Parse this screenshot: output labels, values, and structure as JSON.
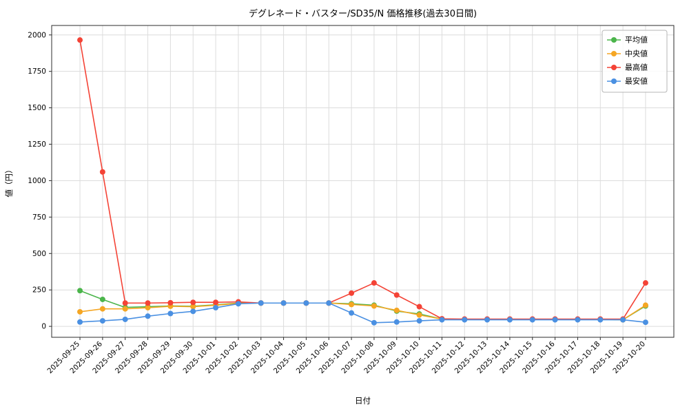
{
  "page": {
    "background": "#ffffff",
    "grid_color": "#dcdcdc",
    "frame_color": "#2b2b2b",
    "legend_border_color": "#b5b5b5"
  },
  "chart_data": {
    "type": "line",
    "title": "デグレネード・バスター/SD35/N 価格推移(過去30日間)",
    "xlabel": "日付",
    "ylabel": "値（円）",
    "grid": true,
    "legend_position": "upper right",
    "ylim": [
      -75,
      2065
    ],
    "yticks": [
      0,
      250,
      500,
      750,
      1000,
      1250,
      1500,
      1750,
      2000
    ],
    "x_margin": 1.25,
    "categories": [
      "2025-09-25",
      "2025-09-26",
      "2025-09-27",
      "2025-09-28",
      "2025-09-29",
      "2025-09-30",
      "2025-10-01",
      "2025-10-02",
      "2025-10-03",
      "2025-10-04",
      "2025-10-05",
      "2025-10-06",
      "2025-10-07",
      "2025-10-08",
      "2025-10-09",
      "2025-10-10",
      "2025-10-11",
      "2025-10-12",
      "2025-10-13",
      "2025-10-14",
      "2025-10-15",
      "2025-10-16",
      "2025-10-17",
      "2025-10-18",
      "2025-10-19",
      "2025-10-20"
    ],
    "series": [
      {
        "name": "平均値",
        "color": "#4bb54b",
        "values": [
          245,
          185,
          130,
          135,
          140,
          138,
          148,
          160,
          160,
          160,
          160,
          160,
          155,
          145,
          105,
          85,
          50,
          48,
          48,
          48,
          48,
          48,
          48,
          48,
          45,
          140
        ]
      },
      {
        "name": "中央値",
        "color": "#f5a623",
        "values": [
          100,
          120,
          120,
          128,
          138,
          135,
          145,
          158,
          160,
          160,
          160,
          160,
          150,
          140,
          110,
          78,
          50,
          48,
          48,
          48,
          48,
          48,
          48,
          48,
          45,
          145
        ]
      },
      {
        "name": "最高値",
        "color": "#f44336",
        "values": [
          1965,
          1060,
          160,
          160,
          162,
          165,
          165,
          168,
          160,
          160,
          160,
          160,
          228,
          298,
          215,
          135,
          52,
          50,
          50,
          50,
          50,
          50,
          50,
          50,
          50,
          298
        ]
      },
      {
        "name": "最安値",
        "color": "#4a90e2",
        "values": [
          30,
          38,
          48,
          70,
          88,
          103,
          128,
          155,
          160,
          160,
          160,
          160,
          92,
          25,
          30,
          38,
          45,
          45,
          45,
          45,
          45,
          45,
          45,
          45,
          45,
          28
        ]
      }
    ]
  }
}
